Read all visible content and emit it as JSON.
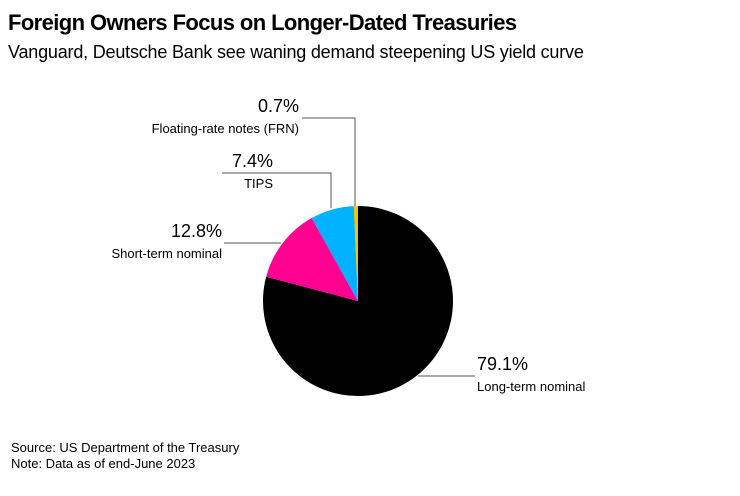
{
  "header": {
    "title": "Foreign Owners Focus on Longer-Dated Treasuries",
    "subtitle": "Vanguard, Deutsche Bank see waning demand steepening US yield curve"
  },
  "footer": {
    "source": "Source: US Department of the Treasury",
    "note": "Note: Data as of end-June 2023"
  },
  "chart_data": {
    "type": "pie",
    "title": "Foreign Owners Focus on Longer-Dated Treasuries",
    "subtitle": "Vanguard, Deutsche Bank see waning demand steepening US yield curve",
    "start": "12 o'clock",
    "direction": "clockwise",
    "slices": [
      {
        "name": "Long-term nominal",
        "value": 79.1,
        "label": "79.1%",
        "color": "#000000"
      },
      {
        "name": "Short-term nominal",
        "value": 12.8,
        "label": "12.8%",
        "color": "#ff0090"
      },
      {
        "name": "TIPS",
        "value": 7.4,
        "label": "7.4%",
        "color": "#00b2ff"
      },
      {
        "name": "Floating-rate notes (FRN)",
        "value": 0.7,
        "label": "0.7%",
        "color": "#f5c400"
      }
    ]
  }
}
